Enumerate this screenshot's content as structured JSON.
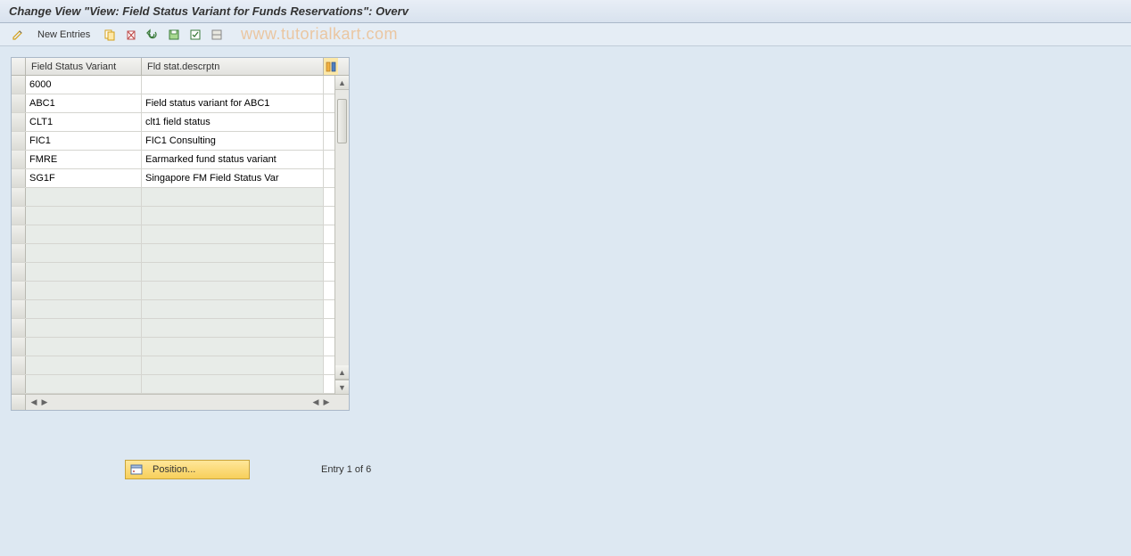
{
  "title": "Change View \"View: Field Status Variant for Funds Reservations\": Overv",
  "toolbar": {
    "new_entries_label": "New Entries"
  },
  "watermark": "www.tutorialkart.com",
  "table": {
    "columns": {
      "col1": "Field Status Variant",
      "col2": "Fld stat.descrptn"
    },
    "rows": [
      {
        "variant": "6000",
        "desc": ""
      },
      {
        "variant": "ABC1",
        "desc": "Field status variant for ABC1"
      },
      {
        "variant": "CLT1",
        "desc": "clt1 field status"
      },
      {
        "variant": "FIC1",
        "desc": "FIC1 Consulting"
      },
      {
        "variant": "FMRE",
        "desc": "Earmarked fund status variant"
      },
      {
        "variant": "SG1F",
        "desc": "Singapore FM Field Status Var"
      }
    ],
    "empty_rows": 11
  },
  "footer": {
    "position_label": "Position...",
    "entry_text": "Entry 1 of 6"
  },
  "colors": {
    "page_bg": "#dde8f2",
    "header_grad_top": "#e8eef6",
    "header_grad_bot": "#d8e2ee",
    "watermark": "#f0a050",
    "btn_grad_top": "#ffe79a",
    "btn_grad_bot": "#f7cf5a"
  }
}
